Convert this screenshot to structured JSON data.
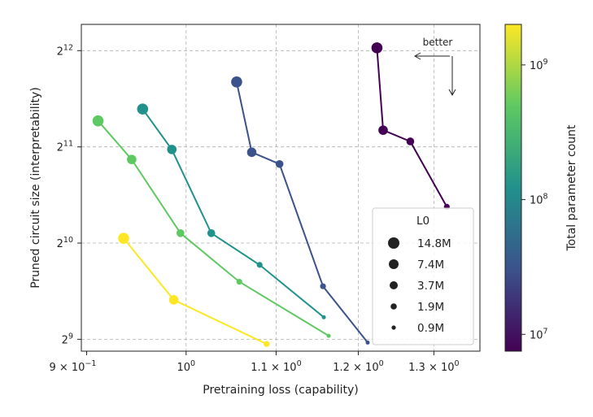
{
  "chart_data": {
    "type": "line",
    "xlabel": "Pretraining loss (capability)",
    "ylabel": "Pruned circuit size (interpretability)",
    "xscale": "log",
    "yscale": "log2",
    "xlim": [
      0.895,
      1.365
    ],
    "ylim": [
      470,
      4950
    ],
    "grid": true,
    "x_ticks": [
      {
        "value": 0.9,
        "base": "9",
        "exp": "−1"
      },
      {
        "value": 1.0,
        "base": "10",
        "exp": "0"
      },
      {
        "value": 1.1,
        "base": "1.1 × 10",
        "exp": "0"
      },
      {
        "value": 1.2,
        "base": "1.2 × 10",
        "exp": "0"
      },
      {
        "value": 1.3,
        "base": "1.3 × 10",
        "exp": "0"
      }
    ],
    "x_tick_prefix": "9 × 10",
    "y_ticks": [
      {
        "value": 512,
        "base": "2",
        "exp": "9"
      },
      {
        "value": 1024,
        "base": "2",
        "exp": "10"
      },
      {
        "value": 2048,
        "base": "2",
        "exp": "11"
      },
      {
        "value": 4096,
        "base": "2",
        "exp": "12"
      }
    ],
    "series": [
      {
        "color": "#440154",
        "points": [
          {
            "x": 1.224,
            "y": 4180,
            "l0": "14.8M"
          },
          {
            "x": 1.232,
            "y": 2310,
            "l0": "7.4M"
          },
          {
            "x": 1.268,
            "y": 2130,
            "l0": "3.7M"
          },
          {
            "x": 1.318,
            "y": 1330,
            "l0": "1.9M"
          }
        ]
      },
      {
        "color": "#3b528b",
        "points": [
          {
            "x": 1.055,
            "y": 3270,
            "l0": "14.8M"
          },
          {
            "x": 1.072,
            "y": 1970,
            "l0": "7.4M"
          },
          {
            "x": 1.104,
            "y": 1810,
            "l0": "3.7M"
          },
          {
            "x": 1.156,
            "y": 750,
            "l0": "1.9M"
          },
          {
            "x": 1.212,
            "y": 500,
            "l0": "0.9M"
          }
        ]
      },
      {
        "color": "#21918c",
        "points": [
          {
            "x": 0.955,
            "y": 2690,
            "l0": "14.8M"
          },
          {
            "x": 0.985,
            "y": 2010,
            "l0": "7.4M"
          },
          {
            "x": 1.027,
            "y": 1100,
            "l0": "3.7M"
          },
          {
            "x": 1.081,
            "y": 875,
            "l0": "1.9M"
          },
          {
            "x": 1.157,
            "y": 600,
            "l0": "0.9M"
          }
        ]
      },
      {
        "color": "#5ec962",
        "points": [
          {
            "x": 0.911,
            "y": 2470,
            "l0": "14.8M"
          },
          {
            "x": 0.944,
            "y": 1870,
            "l0": "7.4M"
          },
          {
            "x": 0.994,
            "y": 1100,
            "l0": "3.7M"
          },
          {
            "x": 1.058,
            "y": 775,
            "l0": "1.9M"
          },
          {
            "x": 1.163,
            "y": 525,
            "l0": "0.9M"
          }
        ]
      },
      {
        "color": "#fde725",
        "points": [
          {
            "x": 0.936,
            "y": 1060,
            "l0": "14.8M"
          },
          {
            "x": 0.987,
            "y": 680,
            "l0": "7.4M"
          },
          {
            "x": 1.089,
            "y": 495,
            "l0": "1.9M"
          }
        ]
      }
    ],
    "legend": {
      "title": "L0",
      "placement": "lower-right",
      "entries": [
        {
          "label": "14.8M",
          "size": 7
        },
        {
          "label": "7.4M",
          "size": 6
        },
        {
          "label": "3.7M",
          "size": 5
        },
        {
          "label": "1.9M",
          "size": 3.8
        },
        {
          "label": "0.9M",
          "size": 2.6
        }
      ]
    },
    "annotation": {
      "text": "better"
    },
    "colorbar": {
      "label": "Total parameter count",
      "scale": "log",
      "range": [
        7500000.0,
        2000000000.0
      ],
      "colors": [
        "#440154",
        "#3b528b",
        "#21918c",
        "#5ec962",
        "#fde725"
      ],
      "ticks": [
        {
          "value": 10000000.0,
          "base": "10",
          "exp": "7"
        },
        {
          "value": 100000000.0,
          "base": "10",
          "exp": "8"
        },
        {
          "value": 1000000000.0,
          "base": "10",
          "exp": "9"
        }
      ]
    }
  }
}
